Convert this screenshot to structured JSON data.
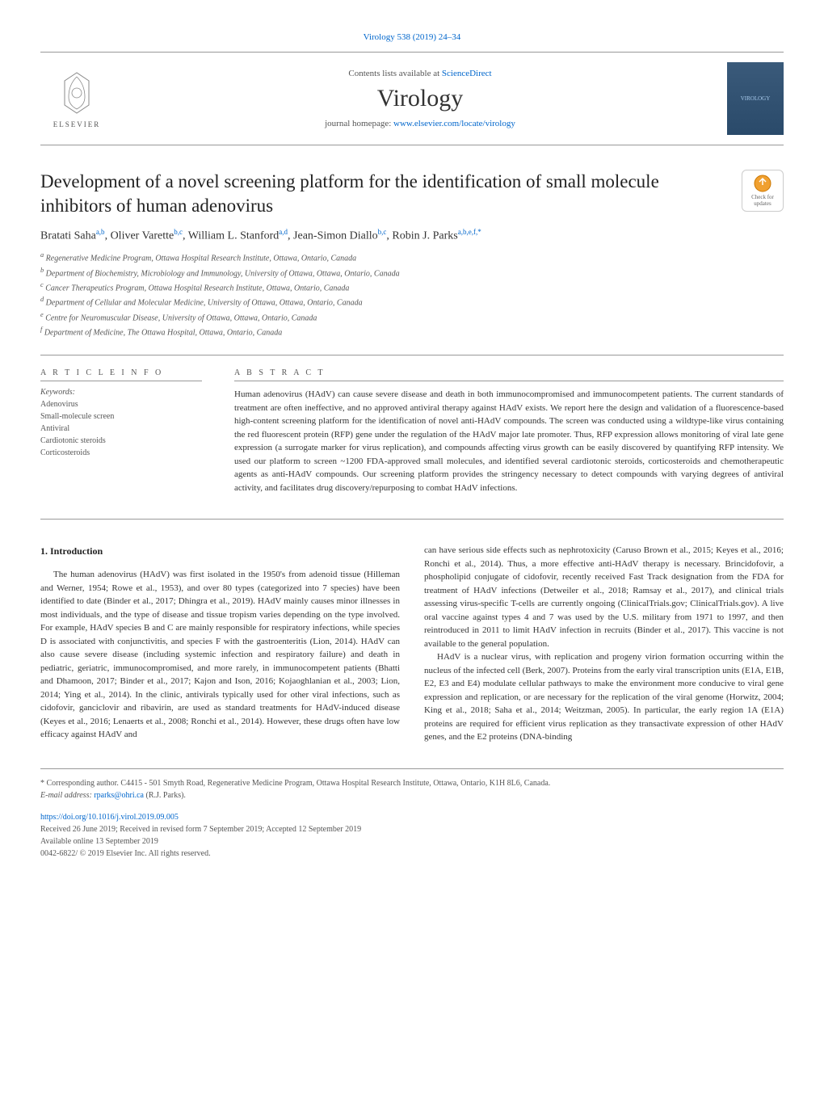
{
  "top_link": "Virology 538 (2019) 24–34",
  "header": {
    "contents_prefix": "Contents lists available at ",
    "contents_link": "ScienceDirect",
    "journal_name": "Virology",
    "homepage_prefix": "journal homepage: ",
    "homepage_link": "www.elsevier.com/locate/virology",
    "elsevier_label": "ELSEVIER",
    "cover_label": "VIROLOGY"
  },
  "updates_label": "Check for updates",
  "title": "Development of a novel screening platform for the identification of small molecule inhibitors of human adenovirus",
  "authors_html": "Bratati Saha<sup>a,b</sup>, Oliver Varette<sup>b,c</sup>, William L. Stanford<sup>a,d</sup>, Jean-Simon Diallo<sup>b,c</sup>, Robin J. Parks<sup>a,b,e,f,*</sup>",
  "affiliations": [
    "a Regenerative Medicine Program, Ottawa Hospital Research Institute, Ottawa, Ontario, Canada",
    "b Department of Biochemistry, Microbiology and Immunology, University of Ottawa, Ottawa, Ontario, Canada",
    "c Cancer Therapeutics Program, Ottawa Hospital Research Institute, Ottawa, Ontario, Canada",
    "d Department of Cellular and Molecular Medicine, University of Ottawa, Ottawa, Ontario, Canada",
    "e Centre for Neuromuscular Disease, University of Ottawa, Ottawa, Ontario, Canada",
    "f Department of Medicine, The Ottawa Hospital, Ottawa, Ontario, Canada"
  ],
  "article_info_label": "A R T I C L E  I N F O",
  "abstract_label": "A B S T R A C T",
  "keywords_label": "Keywords:",
  "keywords": [
    "Adenovirus",
    "Small-molecule screen",
    "Antiviral",
    "Cardiotonic steroids",
    "Corticosteroids"
  ],
  "abstract_text": "Human adenovirus (HAdV) can cause severe disease and death in both immunocompromised and immunocompetent patients. The current standards of treatment are often ineffective, and no approved antiviral therapy against HAdV exists. We report here the design and validation of a fluorescence-based high-content screening platform for the identification of novel anti-HAdV compounds. The screen was conducted using a wildtype-like virus containing the red fluorescent protein (RFP) gene under the regulation of the HAdV major late promoter. Thus, RFP expression allows monitoring of viral late gene expression (a surrogate marker for virus replication), and compounds affecting virus growth can be easily discovered by quantifying RFP intensity. We used our platform to screen ~1200 FDA-approved small molecules, and identified several cardiotonic steroids, corticosteroids and chemotherapeutic agents as anti-HAdV compounds. Our screening platform provides the stringency necessary to detect compounds with varying degrees of antiviral activity, and facilitates drug discovery/repurposing to combat HAdV infections.",
  "intro_heading": "1. Introduction",
  "col1_p1": "The human adenovirus (HAdV) was first isolated in the 1950's from adenoid tissue (Hilleman and Werner, 1954; Rowe et al., 1953), and over 80 types (categorized into 7 species) have been identified to date (Binder et al., 2017; Dhingra et al., 2019). HAdV mainly causes minor illnesses in most individuals, and the type of disease and tissue tropism varies depending on the type involved. For example, HAdV species B and C are mainly responsible for respiratory infections, while species D is associated with conjunctivitis, and species F with the gastroenteritis (Lion, 2014). HAdV can also cause severe disease (including systemic infection and respiratory failure) and death in pediatric, geriatric, immunocompromised, and more rarely, in immunocompetent patients (Bhatti and Dhamoon, 2017; Binder et al., 2017; Kajon and Ison, 2016; Kojaoghlanian et al., 2003; Lion, 2014; Ying et al., 2014). In the clinic, antivirals typically used for other viral infections, such as cidofovir, ganciclovir and ribavirin, are used as standard treatments for HAdV-induced disease (Keyes et al., 2016; Lenaerts et al., 2008; Ronchi et al., 2014). However, these drugs often have low efficacy against HAdV and",
  "col2_p1": "can have serious side effects such as nephrotoxicity (Caruso Brown et al., 2015; Keyes et al., 2016; Ronchi et al., 2014). Thus, a more effective anti-HAdV therapy is necessary. Brincidofovir, a phospholipid conjugate of cidofovir, recently received Fast Track designation from the FDA for treatment of HAdV infections (Detweiler et al., 2018; Ramsay et al., 2017), and clinical trials assessing virus-specific T-cells are currently ongoing (ClinicalTrials.gov; ClinicalTrials.gov). A live oral vaccine against types 4 and 7 was used by the U.S. military from 1971 to 1997, and then reintroduced in 2011 to limit HAdV infection in recruits (Binder et al., 2017). This vaccine is not available to the general population.",
  "col2_p2": "HAdV is a nuclear virus, with replication and progeny virion formation occurring within the nucleus of the infected cell (Berk, 2007). Proteins from the early viral transcription units (E1A, E1B, E2, E3 and E4) modulate cellular pathways to make the environment more conducive to viral gene expression and replication, or are necessary for the replication of the viral genome (Horwitz, 2004; King et al., 2018; Saha et al., 2014; Weitzman, 2005). In particular, the early region 1A (E1A) proteins are required for efficient virus replication as they transactivate expression of other HAdV genes, and the E2 proteins (DNA-binding",
  "footer": {
    "corresponding": "* Corresponding author. C4415 - 501 Smyth Road, Regenerative Medicine Program, Ottawa Hospital Research Institute, Ottawa, Ontario, K1H 8L6, Canada.",
    "email_label": "E-mail address: ",
    "email": "rparks@ohri.ca",
    "email_suffix": " (R.J. Parks).",
    "doi": "https://doi.org/10.1016/j.virol.2019.09.005",
    "received": "Received 26 June 2019; Received in revised form 7 September 2019; Accepted 12 September 2019",
    "available": "Available online 13 September 2019",
    "copyright": "0042-6822/ © 2019 Elsevier Inc. All rights reserved."
  }
}
